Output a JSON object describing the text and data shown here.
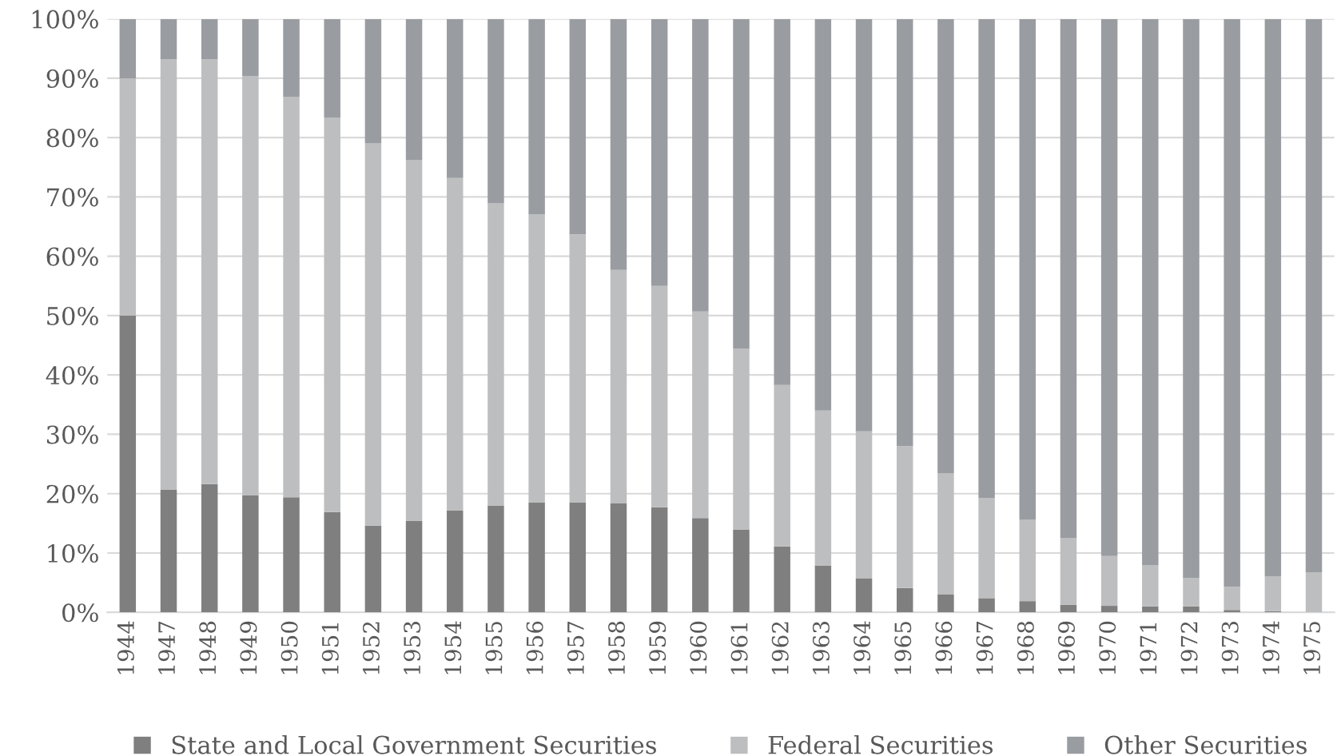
{
  "chart_data": {
    "type": "bar",
    "stacked": true,
    "categories": [
      "1944",
      "1947",
      "1948",
      "1949",
      "1950",
      "1951",
      "1952",
      "1953",
      "1954",
      "1955",
      "1956",
      "1957",
      "1958",
      "1959",
      "1960",
      "1961",
      "1962",
      "1963",
      "1964",
      "1965",
      "1966",
      "1967",
      "1968",
      "1969",
      "1970",
      "1971",
      "1972",
      "1973",
      "1974",
      "1975"
    ],
    "series": [
      {
        "name": "State and Local Government Securities",
        "color": "#7f7f7f",
        "values": [
          50,
          20.7,
          21.6,
          19.7,
          19.4,
          16.9,
          14.6,
          15.4,
          17.2,
          18.0,
          18.5,
          18.5,
          18.4,
          17.7,
          15.9,
          13.9,
          11.1,
          7.9,
          5.7,
          4.1,
          3.0,
          2.4,
          1.9,
          1.3,
          1.1,
          1.0,
          1.0,
          0.4,
          0.2,
          0
        ]
      },
      {
        "name": "Federal Securities",
        "color": "#bdbec0",
        "values": [
          40,
          72.5,
          71.6,
          70.7,
          67.5,
          66.5,
          64.4,
          60.8,
          56.0,
          50.9,
          48.6,
          45.2,
          39.3,
          37.3,
          34.8,
          30.5,
          27.2,
          26.1,
          24.8,
          23.9,
          20.4,
          16.9,
          13.7,
          11.2,
          8.4,
          6.9,
          4.8,
          3.9,
          5.9,
          6.7
        ]
      },
      {
        "name": "Other Securities",
        "color": "#999ca0",
        "values": [
          10,
          6.8,
          6.8,
          9.6,
          13.1,
          16.6,
          21.0,
          23.8,
          26.8,
          31.1,
          32.9,
          36.3,
          42.3,
          45.0,
          49.3,
          55.6,
          61.7,
          66.0,
          69.5,
          72.0,
          76.6,
          80.7,
          84.4,
          87.5,
          90.5,
          92.1,
          94.2,
          95.7,
          93.9,
          93.3
        ]
      }
    ],
    "ylim": [
      0,
      100
    ],
    "yticks": [
      {
        "value": 0,
        "label": "0%"
      },
      {
        "value": 10,
        "label": "10%"
      },
      {
        "value": 20,
        "label": "20%"
      },
      {
        "value": 30,
        "label": "30%"
      },
      {
        "value": 40,
        "label": "40%"
      },
      {
        "value": 50,
        "label": "50%"
      },
      {
        "value": 60,
        "label": "60%"
      },
      {
        "value": 70,
        "label": "70%"
      },
      {
        "value": 80,
        "label": "80%"
      },
      {
        "value": 90,
        "label": "90%"
      },
      {
        "value": 100,
        "label": "100%"
      }
    ],
    "grid": "y",
    "legend": "bottom"
  }
}
